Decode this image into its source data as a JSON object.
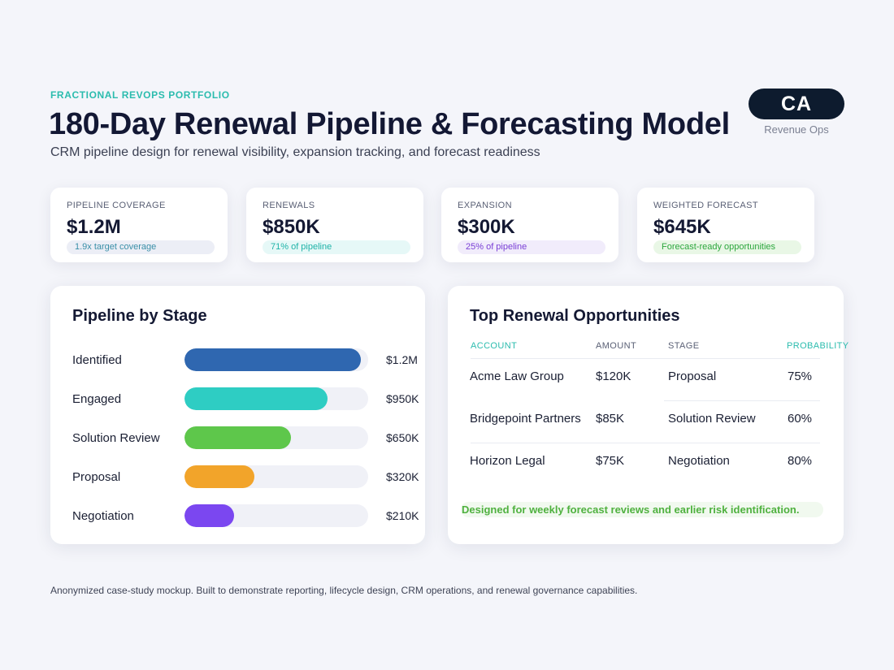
{
  "header": {
    "eyebrow": "FRACTIONAL REVOPS PORTFOLIO",
    "title": "180-Day Renewal Pipeline & Forecasting Model",
    "subtitle": "CRM pipeline design for renewal visibility, expansion tracking, and forecast readiness",
    "badge": "CA",
    "badge_caption": "Revenue Ops"
  },
  "kpis": [
    {
      "label": "PIPELINE COVERAGE",
      "value": "$1.2M",
      "note": "1.9x target coverage",
      "note_color": "#3a8fa8",
      "note_bg": "#eceef6"
    },
    {
      "label": "RENEWALS",
      "value": "$850K",
      "note": "71% of pipeline",
      "note_color": "#1fb3a8",
      "note_bg": "#e6f8f7"
    },
    {
      "label": "EXPANSION",
      "value": "$300K",
      "note": "25% of pipeline",
      "note_color": "#7a3fd6",
      "note_bg": "#f1ecfb"
    },
    {
      "label": "WEIGHTED FORECAST",
      "value": "$645K",
      "note": "Forecast-ready opportunities",
      "note_color": "#2ca73d",
      "note_bg": "#e9f7e6"
    }
  ],
  "pipeline": {
    "title": "Pipeline by Stage",
    "stages": [
      {
        "label": "Identified",
        "amount": "$1.2M",
        "fill": 0.96,
        "color": "#2f67b0"
      },
      {
        "label": "Engaged",
        "amount": "$950K",
        "fill": 0.78,
        "color": "#2ecdc3"
      },
      {
        "label": "Solution Review",
        "amount": "$650K",
        "fill": 0.58,
        "color": "#5ec74b"
      },
      {
        "label": "Proposal",
        "amount": "$320K",
        "fill": 0.38,
        "color": "#f2a42a"
      },
      {
        "label": "Negotiation",
        "amount": "$210K",
        "fill": 0.27,
        "color": "#7b47f0"
      }
    ]
  },
  "opportunities": {
    "title": "Top Renewal Opportunities",
    "headers": {
      "account": "ACCOUNT",
      "amount": "AMOUNT",
      "stage": "STAGE",
      "probability": "PROBABILITY"
    },
    "rows": [
      {
        "account": "Acme Law Group",
        "amount": "$120K",
        "stage": "Proposal",
        "probability": "75%"
      },
      {
        "account": "Bridgepoint Partners",
        "amount": "$85K",
        "stage": "Solution Review",
        "probability": "60%"
      },
      {
        "account": "Horizon Legal",
        "amount": "$75K",
        "stage": "Negotiation",
        "probability": "80%"
      }
    ],
    "tagline": "Designed for weekly forecast reviews and earlier risk identification."
  },
  "footer": "Anonymized case-study mockup. Built to demonstrate reporting, lifecycle design, CRM operations, and renewal governance capabilities.",
  "colors": {
    "accent_teal": "#2bbcae",
    "header_probability": "#2bbcae",
    "header_account": "#2bbcae"
  }
}
